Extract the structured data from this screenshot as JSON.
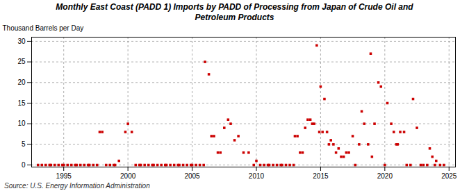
{
  "chart_data": {
    "type": "scatter",
    "title": "Monthly East Coast (PADD 1) Imports by PADD of Processing from Japan of Crude Oil and\nPetroleum Products",
    "ylabel": "Thousand Barrels per Day",
    "source": "Source: U.S. Energy Information Administration",
    "color": "#cc0000",
    "marker": "square",
    "grid": true,
    "xlim": [
      1992.5,
      2025.5
    ],
    "ylim": [
      -0.5,
      31
    ],
    "xticks": [
      1995,
      2000,
      2005,
      2010,
      2015,
      2020,
      2025
    ],
    "yticks": [
      0,
      5,
      10,
      15,
      20,
      25,
      30
    ],
    "x": [
      1993.0,
      1993.3,
      1993.6,
      1993.9,
      1994.0,
      1994.3,
      1994.6,
      1994.9,
      1995.0,
      1995.3,
      1995.6,
      1995.9,
      1996.0,
      1996.3,
      1996.6,
      1996.9,
      1997.0,
      1997.3,
      1997.6,
      1997.8,
      1998.0,
      1998.3,
      1998.6,
      1998.9,
      1999.0,
      1999.3,
      1999.8,
      2000.0,
      2000.3,
      2000.6,
      2000.9,
      2001.0,
      2001.3,
      2001.6,
      2001.9,
      2002.0,
      2002.3,
      2002.6,
      2002.9,
      2003.0,
      2003.3,
      2003.6,
      2003.9,
      2004.0,
      2004.3,
      2004.6,
      2004.9,
      2005.0,
      2005.3,
      2005.6,
      2005.9,
      2006.0,
      2006.3,
      2006.5,
      2006.7,
      2007.0,
      2007.2,
      2007.5,
      2007.8,
      2008.0,
      2008.3,
      2008.6,
      2009.0,
      2009.4,
      2009.8,
      2010.0,
      2010.3,
      2010.6,
      2010.9,
      2011.0,
      2011.3,
      2011.6,
      2011.9,
      2012.0,
      2012.3,
      2012.6,
      2012.9,
      2013.0,
      2013.2,
      2013.4,
      2013.6,
      2013.8,
      2014.0,
      2014.2,
      2014.35,
      2014.5,
      2014.7,
      2014.9,
      2015.0,
      2015.15,
      2015.3,
      2015.5,
      2015.65,
      2015.8,
      2016.0,
      2016.2,
      2016.4,
      2016.6,
      2016.8,
      2017.0,
      2017.2,
      2017.5,
      2017.7,
      2018.0,
      2018.2,
      2018.4,
      2018.7,
      2018.9,
      2019.0,
      2019.2,
      2019.5,
      2019.7,
      2020.0,
      2020.2,
      2020.5,
      2020.7,
      2020.9,
      2021.0,
      2021.2,
      2021.5,
      2021.7,
      2022.0,
      2022.2,
      2022.5,
      2022.8,
      2023.0,
      2023.3,
      2023.5,
      2023.7,
      2023.9,
      2024.0,
      2024.3,
      2024.6
    ],
    "values": [
      0,
      0,
      0,
      0,
      0,
      0,
      0,
      0,
      0,
      0,
      0,
      0,
      0,
      0,
      0,
      0,
      0,
      0,
      0,
      8,
      8,
      0,
      0,
      0,
      0,
      1,
      8,
      10,
      8,
      0,
      0,
      0,
      0,
      0,
      0,
      0,
      0,
      0,
      0,
      0,
      0,
      0,
      0,
      0,
      0,
      0,
      0,
      0,
      0,
      0,
      0,
      25,
      22,
      7,
      7,
      3,
      3,
      9,
      11,
      10,
      6,
      7,
      3,
      3,
      0,
      1,
      0,
      0,
      0,
      0,
      0,
      0,
      0,
      0,
      0,
      0,
      0,
      7,
      7,
      3,
      3,
      9,
      11,
      11,
      10,
      10,
      29,
      8,
      19,
      8,
      16,
      8,
      5,
      6,
      5,
      3,
      4,
      2,
      2,
      3,
      3,
      7,
      0,
      5,
      13,
      10,
      5,
      27,
      2,
      10,
      20,
      19,
      0,
      15,
      10,
      8,
      5,
      5,
      8,
      8,
      0,
      0,
      16,
      9,
      0,
      0,
      0,
      4,
      2,
      0,
      1,
      0,
      0
    ]
  }
}
